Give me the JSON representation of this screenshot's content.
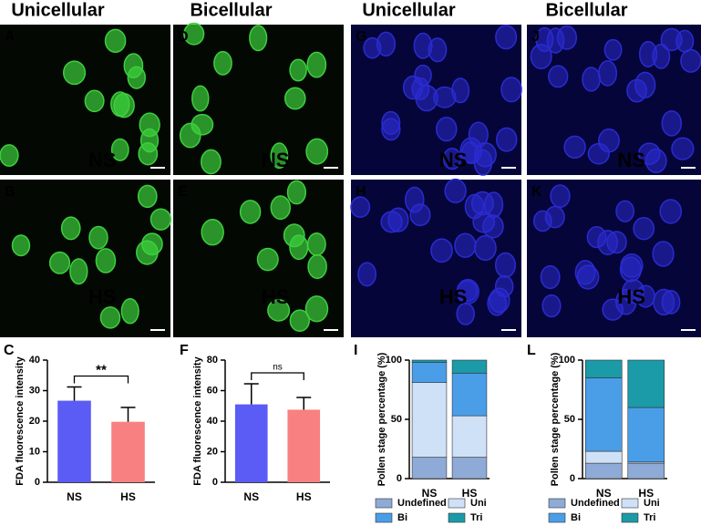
{
  "column_headers": [
    "Unicellular",
    "Bicellular",
    "Unicellular",
    "Bicellular"
  ],
  "image_panels": [
    {
      "label": "A",
      "condition": "NS",
      "cell_color": "#3ccf3c"
    },
    {
      "label": "B",
      "condition": "HS",
      "cell_color": "#3ccf3c"
    },
    {
      "label": "D",
      "condition": "NS",
      "cell_color": "#3ccf3c"
    },
    {
      "label": "E",
      "condition": "HS",
      "cell_color": "#3ccf3c"
    },
    {
      "label": "G",
      "condition": "NS",
      "cell_color": "#2a2ad0"
    },
    {
      "label": "H",
      "condition": "HS",
      "cell_color": "#2a2ad0"
    },
    {
      "label": "J",
      "condition": "NS",
      "cell_color": "#2a2ad0"
    },
    {
      "label": "K",
      "condition": "HS",
      "cell_color": "#2a2ad0"
    }
  ],
  "chart_data": [
    {
      "type": "bar",
      "panel": "C",
      "ylabel": "FDA fluorescence intensity",
      "categories": [
        "NS",
        "HS"
      ],
      "values": [
        26.7,
        19.8
      ],
      "errors": [
        4.5,
        4.7
      ],
      "colors": [
        "#5b5bf5",
        "#f98080"
      ],
      "ylim": [
        0,
        40
      ],
      "yticks": [
        0,
        10,
        20,
        30,
        40
      ],
      "annotation": "**"
    },
    {
      "type": "bar",
      "panel": "F",
      "ylabel": "FDA fluorescence intensity",
      "categories": [
        "NS",
        "HS"
      ],
      "values": [
        51,
        47.5
      ],
      "errors": [
        13.5,
        8
      ],
      "colors": [
        "#5b5bf5",
        "#f98080"
      ],
      "ylim": [
        0,
        80
      ],
      "yticks": [
        0,
        20,
        40,
        60,
        80
      ],
      "annotation": "ns"
    },
    {
      "type": "stacked_bar",
      "panel": "I",
      "ylabel": "Pollen stage percentage (%)",
      "categories": [
        "NS",
        "HS"
      ],
      "series": [
        {
          "name": "Undefined",
          "color": "#8eaad6",
          "values": [
            18,
            18
          ]
        },
        {
          "name": "Uni",
          "color": "#cfe1f7",
          "values": [
            63,
            35
          ]
        },
        {
          "name": "Bi",
          "color": "#4a9ee8",
          "values": [
            17,
            36
          ]
        },
        {
          "name": "Tri",
          "color": "#1b9aa8",
          "values": [
            2,
            11
          ]
        }
      ],
      "ylim": [
        0,
        100
      ],
      "yticks": [
        0,
        50,
        100
      ]
    },
    {
      "type": "stacked_bar",
      "panel": "L",
      "ylabel": "Pollen stage percentage (%)",
      "categories": [
        "NS",
        "HS"
      ],
      "series": [
        {
          "name": "Undefined",
          "color": "#8eaad6",
          "values": [
            13,
            13
          ]
        },
        {
          "name": "Uni",
          "color": "#cfe1f7",
          "values": [
            10,
            1
          ]
        },
        {
          "name": "Bi",
          "color": "#4a9ee8",
          "values": [
            62,
            46
          ]
        },
        {
          "name": "Tri",
          "color": "#1b9aa8",
          "values": [
            15,
            40
          ]
        }
      ],
      "ylim": [
        0,
        100
      ],
      "yticks": [
        0,
        50,
        100
      ]
    }
  ]
}
